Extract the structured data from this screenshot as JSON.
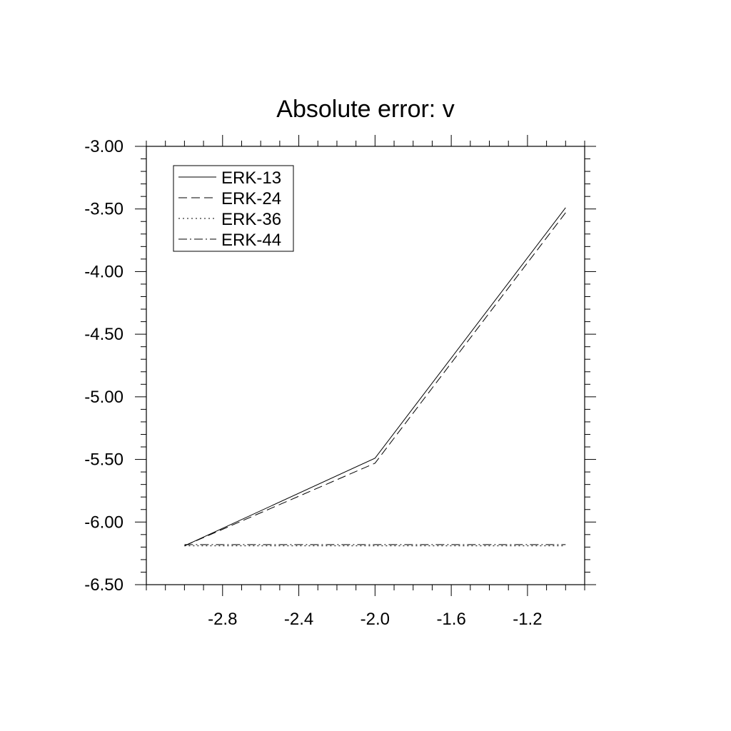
{
  "chart_data": {
    "type": "line",
    "title": "Absolute error: v",
    "xlabel": "",
    "ylabel": "",
    "xlim": [
      -3.2,
      -0.9
    ],
    "ylim": [
      -6.5,
      -3.0
    ],
    "x_ticks": [
      -2.8,
      -2.4,
      -2.0,
      -1.6,
      -1.2
    ],
    "x_tick_labels": [
      "-2.8",
      "-2.4",
      "-2.0",
      "-1.6",
      "-1.2"
    ],
    "y_ticks": [
      -3.0,
      -3.5,
      -4.0,
      -4.5,
      -5.0,
      -5.5,
      -6.0,
      -6.5
    ],
    "y_tick_labels": [
      "-3.00",
      "-3.50",
      "-4.00",
      "-4.50",
      "-5.00",
      "-5.50",
      "-6.00",
      "-6.50"
    ],
    "grid": false,
    "legend_position": "top-left",
    "series": [
      {
        "name": "ERK-13",
        "dash": "none",
        "x": [
          -3.0,
          -2.0,
          -1.0
        ],
        "y": [
          -6.19,
          -5.49,
          -3.49
        ]
      },
      {
        "name": "ERK-24",
        "dash": "dashed",
        "x": [
          -3.0,
          -2.0,
          -1.0
        ],
        "y": [
          -6.19,
          -5.53,
          -3.53
        ]
      },
      {
        "name": "ERK-36",
        "dash": "dotted",
        "x": [
          -3.0,
          -2.0,
          -1.0
        ],
        "y": [
          -6.19,
          -6.19,
          -6.19
        ]
      },
      {
        "name": "ERK-44",
        "dash": "dashdot",
        "x": [
          -3.0,
          -2.0,
          -1.0
        ],
        "y": [
          -6.18,
          -6.18,
          -6.18
        ]
      }
    ],
    "colors": {
      "line": "#000000",
      "background": "#ffffff"
    }
  }
}
